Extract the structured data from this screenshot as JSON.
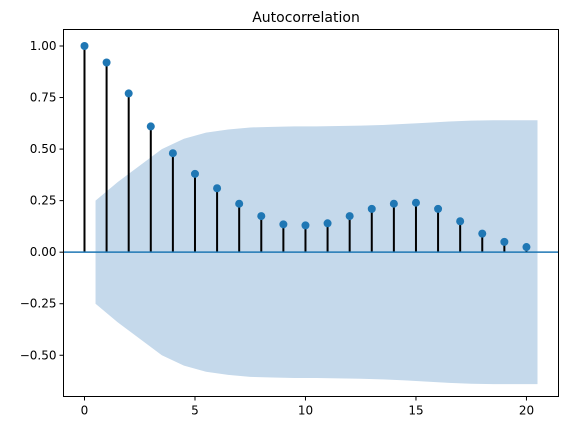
{
  "chart_data": {
    "type": "stem",
    "title": "Autocorrelation",
    "xlabel": "",
    "ylabel": "",
    "xlim": [
      -0.95,
      21.45
    ],
    "ylim": [
      -0.7,
      1.08
    ],
    "grid": false,
    "legend": "none",
    "x_ticks": [
      0,
      5,
      10,
      15,
      20
    ],
    "x_tick_labels": [
      "0",
      "5",
      "10",
      "15",
      "20"
    ],
    "y_ticks": [
      -0.5,
      -0.25,
      0.0,
      0.25,
      0.5,
      0.75,
      1.0
    ],
    "y_tick_labels": [
      "−0.50",
      "−0.25",
      "0.00",
      "0.25",
      "0.50",
      "0.75",
      "1.00"
    ],
    "lags": [
      0,
      1,
      2,
      3,
      4,
      5,
      6,
      7,
      8,
      9,
      10,
      11,
      12,
      13,
      14,
      15,
      16,
      17,
      18,
      19,
      20
    ],
    "acf": [
      1.0,
      0.92,
      0.77,
      0.61,
      0.48,
      0.38,
      0.31,
      0.235,
      0.175,
      0.135,
      0.13,
      0.14,
      0.175,
      0.21,
      0.235,
      0.24,
      0.21,
      0.15,
      0.09,
      0.05,
      0.025
    ],
    "confidence_band": {
      "x": [
        0.5,
        1.5,
        2.5,
        3.5,
        4.5,
        5.5,
        6.5,
        7.5,
        8.5,
        9.5,
        10.5,
        11.5,
        12.5,
        13.5,
        14.5,
        15.5,
        16.5,
        17.5,
        18.5,
        19.5,
        20.5
      ],
      "upper": [
        0.25,
        0.34,
        0.42,
        0.5,
        0.55,
        0.58,
        0.595,
        0.605,
        0.608,
        0.61,
        0.61,
        0.612,
        0.614,
        0.617,
        0.622,
        0.628,
        0.634,
        0.638,
        0.64,
        0.64,
        0.64
      ],
      "lower": [
        -0.25,
        -0.34,
        -0.42,
        -0.5,
        -0.55,
        -0.58,
        -0.595,
        -0.605,
        -0.608,
        -0.61,
        -0.61,
        -0.612,
        -0.614,
        -0.617,
        -0.622,
        -0.628,
        -0.634,
        -0.638,
        -0.64,
        -0.64,
        -0.64
      ]
    },
    "colors": {
      "marker": "#1f77b4",
      "stem": "#000000",
      "baseline": "#1f77b4",
      "band": "#c5d9eb",
      "axes": "#000000"
    }
  }
}
